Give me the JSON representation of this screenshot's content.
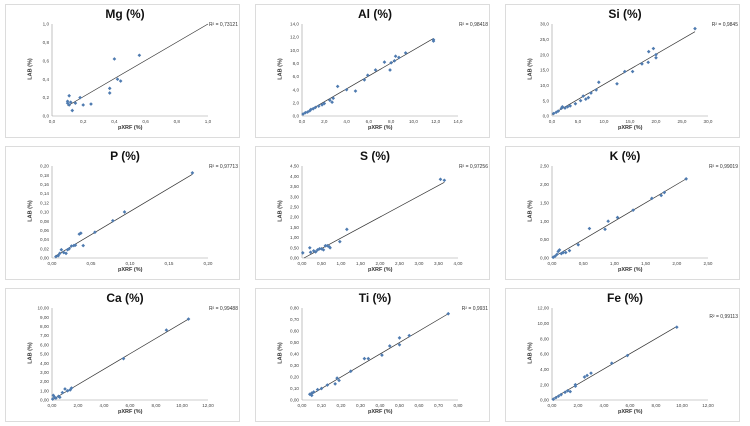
{
  "chart_data": [
    {
      "type": "scatter",
      "title": "Mg (%)",
      "r2_label": "R² = 0,73121",
      "xlabel": "pXRF (%)",
      "ylabel": "LAB (%)",
      "xlim": [
        0,
        1
      ],
      "ylim": [
        0,
        1
      ],
      "xticks": [
        "0,0",
        "0,2",
        "0,4",
        "0,6",
        "0,8",
        "1,0"
      ],
      "yticks": [
        "0,0",
        "0,2",
        "0,4",
        "0,6",
        "0,8",
        "1,0"
      ],
      "points": [
        [
          0.1,
          0.14
        ],
        [
          0.1,
          0.16
        ],
        [
          0.11,
          0.12
        ],
        [
          0.11,
          0.22
        ],
        [
          0.12,
          0.15
        ],
        [
          0.13,
          0.06
        ],
        [
          0.15,
          0.14
        ],
        [
          0.18,
          0.2
        ],
        [
          0.2,
          0.12
        ],
        [
          0.25,
          0.13
        ],
        [
          0.37,
          0.25
        ],
        [
          0.37,
          0.3
        ],
        [
          0.4,
          0.62
        ],
        [
          0.42,
          0.4
        ],
        [
          0.44,
          0.38
        ],
        [
          0.56,
          0.66
        ]
      ],
      "trendline": [
        [
          0.1,
          0.11
        ],
        [
          1.0,
          1.0
        ]
      ],
      "marker_color": "#4f7bb0",
      "line_color": "#333333"
    },
    {
      "type": "scatter",
      "title": "Al (%)",
      "r2_label": "R² = 0,98418",
      "xlabel": "pXRF (%)",
      "ylabel": "LAB (%)",
      "xlim": [
        0,
        14
      ],
      "ylim": [
        0,
        14
      ],
      "xticks": [
        "0,0",
        "2,0",
        "4,0",
        "6,0",
        "8,0",
        "10,0",
        "12,0",
        "14,0"
      ],
      "yticks": [
        "0,0",
        "2,0",
        "4,0",
        "6,0",
        "8,0",
        "10,0",
        "12,0",
        "14,0"
      ],
      "points": [
        [
          0.1,
          0.3
        ],
        [
          0.3,
          0.5
        ],
        [
          0.5,
          0.6
        ],
        [
          0.7,
          0.8
        ],
        [
          0.8,
          1.0
        ],
        [
          1.0,
          1.1
        ],
        [
          1.2,
          1.3
        ],
        [
          1.5,
          1.5
        ],
        [
          1.8,
          1.7
        ],
        [
          2.0,
          1.9
        ],
        [
          2.5,
          2.4
        ],
        [
          2.7,
          2.1
        ],
        [
          2.8,
          2.7
        ],
        [
          3.2,
          4.5
        ],
        [
          4.0,
          4.0
        ],
        [
          4.8,
          3.8
        ],
        [
          5.6,
          5.5
        ],
        [
          5.9,
          6.2
        ],
        [
          6.6,
          7.0
        ],
        [
          7.4,
          8.2
        ],
        [
          7.9,
          7.0
        ],
        [
          8.0,
          8.1
        ],
        [
          8.3,
          8.4
        ],
        [
          8.4,
          9.1
        ],
        [
          8.7,
          8.9
        ],
        [
          9.3,
          9.6
        ],
        [
          11.8,
          11.6
        ],
        [
          11.8,
          11.4
        ]
      ],
      "trendline": [
        [
          0,
          0.2
        ],
        [
          11.8,
          11.8
        ]
      ],
      "marker_color": "#4f7bb0",
      "line_color": "#333333"
    },
    {
      "type": "scatter",
      "title": "Si (%)",
      "r2_label": "R² = 0,9845",
      "xlabel": "pXRF (%)",
      "ylabel": "LAB (%)",
      "xlim": [
        0,
        30
      ],
      "ylim": [
        0,
        30
      ],
      "xticks": [
        "0,0",
        "5,0",
        "10,0",
        "15,0",
        "20,0",
        "25,0",
        "30,0"
      ],
      "yticks": [
        "0,0",
        "5,0",
        "10,0",
        "15,0",
        "20,0",
        "25,0",
        "30,0"
      ],
      "points": [
        [
          0.3,
          0.8
        ],
        [
          0.8,
          1.2
        ],
        [
          1.2,
          1.6
        ],
        [
          1.8,
          2.5
        ],
        [
          2,
          3
        ],
        [
          2.5,
          2.6
        ],
        [
          3,
          3
        ],
        [
          3.5,
          3.3
        ],
        [
          4.5,
          4
        ],
        [
          5.5,
          5
        ],
        [
          6,
          6.5
        ],
        [
          6.5,
          5.5
        ],
        [
          7,
          6
        ],
        [
          7.5,
          7.5
        ],
        [
          8.5,
          8.5
        ],
        [
          9,
          11
        ],
        [
          12.5,
          10.5
        ],
        [
          14,
          14.5
        ],
        [
          15.5,
          14.5
        ],
        [
          17.3,
          17
        ],
        [
          18.5,
          17.5
        ],
        [
          18.6,
          21
        ],
        [
          19.5,
          22
        ],
        [
          20,
          19
        ],
        [
          20,
          20
        ],
        [
          27.5,
          28.5
        ]
      ],
      "trendline": [
        [
          0,
          0.5
        ],
        [
          27.5,
          27.5
        ]
      ],
      "marker_color": "#4f7bb0",
      "line_color": "#333333"
    },
    {
      "type": "scatter",
      "title": "P (%)",
      "r2_label": "R² = 0,97713",
      "xlabel": "pXRF (%)",
      "ylabel": "LAB (%)",
      "xlim": [
        0,
        0.2
      ],
      "ylim": [
        0,
        0.2
      ],
      "xticks": [
        "0,00",
        "0,05",
        "0,10",
        "0,15",
        "0,20"
      ],
      "yticks": [
        "0,00",
        "0,02",
        "0,04",
        "0,06",
        "0,08",
        "0,10",
        "0,12",
        "0,14",
        "0,16",
        "0,18",
        "0,20"
      ],
      "points": [
        [
          0.005,
          0.003
        ],
        [
          0.008,
          0.005
        ],
        [
          0.01,
          0.01
        ],
        [
          0.012,
          0.018
        ],
        [
          0.015,
          0.012
        ],
        [
          0.018,
          0.01
        ],
        [
          0.02,
          0.018
        ],
        [
          0.022,
          0.02
        ],
        [
          0.025,
          0.026
        ],
        [
          0.028,
          0.027
        ],
        [
          0.03,
          0.028
        ],
        [
          0.035,
          0.052
        ],
        [
          0.037,
          0.054
        ],
        [
          0.04,
          0.027
        ],
        [
          0.055,
          0.056
        ],
        [
          0.078,
          0.081
        ],
        [
          0.093,
          0.1
        ],
        [
          0.18,
          0.185
        ]
      ],
      "trendline": [
        [
          0.005,
          0.005
        ],
        [
          0.18,
          0.182
        ]
      ],
      "marker_color": "#4f7bb0",
      "line_color": "#333333"
    },
    {
      "type": "scatter",
      "title": "S (%)",
      "r2_label": "R² = 0,97256",
      "xlabel": "pXRF (%)",
      "ylabel": "LAB (%)",
      "xlim": [
        0,
        4
      ],
      "ylim": [
        0,
        4.5
      ],
      "xticks": [
        "0,00",
        "0,50",
        "1,00",
        "1,50",
        "2,00",
        "2,50",
        "3,00",
        "3,50",
        "4,00"
      ],
      "yticks": [
        "0,00",
        "0,50",
        "1,00",
        "1,50",
        "2,00",
        "2,50",
        "3,00",
        "3,50",
        "4,00",
        "4,50"
      ],
      "points": [
        [
          0.02,
          0.25
        ],
        [
          0.2,
          0.5
        ],
        [
          0.22,
          0.28
        ],
        [
          0.3,
          0.35
        ],
        [
          0.35,
          0.3
        ],
        [
          0.4,
          0.4
        ],
        [
          0.45,
          0.45
        ],
        [
          0.5,
          0.45
        ],
        [
          0.55,
          0.4
        ],
        [
          0.6,
          0.6
        ],
        [
          0.65,
          0.6
        ],
        [
          0.7,
          0.55
        ],
        [
          0.72,
          0.5
        ],
        [
          0.97,
          0.8
        ],
        [
          1.15,
          1.4
        ],
        [
          3.55,
          3.85
        ],
        [
          3.65,
          3.8
        ]
      ],
      "trendline": [
        [
          0.05,
          0
        ],
        [
          3.65,
          3.7
        ]
      ],
      "marker_color": "#4f7bb0",
      "line_color": "#333333"
    },
    {
      "type": "scatter",
      "title": "K (%)",
      "r2_label": "R² = 0,99019",
      "xlabel": "pXRF (%)",
      "ylabel": "LAB (%)",
      "xlim": [
        0,
        2.5
      ],
      "ylim": [
        0,
        2.5
      ],
      "xticks": [
        "0,00",
        "0,50",
        "1,00",
        "1,50",
        "2,00",
        "2,50"
      ],
      "yticks": [
        "0,00",
        "0,50",
        "1,00",
        "1,50",
        "2,00",
        "2,50"
      ],
      "points": [
        [
          0.02,
          0.02
        ],
        [
          0.05,
          0.05
        ],
        [
          0.08,
          0.1
        ],
        [
          0.1,
          0.18
        ],
        [
          0.12,
          0.22
        ],
        [
          0.15,
          0.12
        ],
        [
          0.18,
          0.15
        ],
        [
          0.22,
          0.15
        ],
        [
          0.28,
          0.2
        ],
        [
          0.42,
          0.36
        ],
        [
          0.6,
          0.8
        ],
        [
          0.85,
          0.78
        ],
        [
          0.9,
          1.0
        ],
        [
          1.05,
          1.1
        ],
        [
          1.3,
          1.3
        ],
        [
          1.6,
          1.62
        ],
        [
          1.75,
          1.7
        ],
        [
          1.8,
          1.78
        ],
        [
          2.15,
          2.15
        ]
      ],
      "trendline": [
        [
          0,
          0
        ],
        [
          2.15,
          2.15
        ]
      ],
      "marker_color": "#4f7bb0",
      "line_color": "#333333"
    },
    {
      "type": "scatter",
      "title": "Ca (%)",
      "r2_label": "R² = 0,99488",
      "xlabel": "pXRF (%)",
      "ylabel": "LAB (%)",
      "xlim": [
        0,
        12
      ],
      "ylim": [
        0,
        10
      ],
      "xticks": [
        "0,00",
        "2,00",
        "4,00",
        "6,00",
        "8,00",
        "10,00",
        "12,00"
      ],
      "yticks": [
        "0,00",
        "1,00",
        "2,00",
        "3,00",
        "4,00",
        "5,00",
        "6,00",
        "7,00",
        "8,00",
        "9,00",
        "10,00"
      ],
      "points": [
        [
          0.05,
          0.1
        ],
        [
          0.1,
          0.5
        ],
        [
          0.2,
          0.3
        ],
        [
          0.3,
          0.2
        ],
        [
          0.5,
          0.4
        ],
        [
          0.6,
          0.3
        ],
        [
          0.8,
          0.8
        ],
        [
          1.0,
          1.2
        ],
        [
          1.2,
          1.0
        ],
        [
          1.4,
          1.1
        ],
        [
          1.5,
          1.3
        ],
        [
          5.5,
          4.5
        ],
        [
          8.8,
          7.6
        ],
        [
          10.5,
          8.8
        ]
      ],
      "trendline": [
        [
          0,
          0
        ],
        [
          10.5,
          8.8
        ]
      ],
      "marker_color": "#4f7bb0",
      "line_color": "#333333"
    },
    {
      "type": "scatter",
      "title": "Ti (%)",
      "r2_label": "R² = 0,9931",
      "xlabel": "pXRF (%)",
      "ylabel": "LAB (%)",
      "xlim": [
        0,
        0.8
      ],
      "ylim": [
        0,
        0.8
      ],
      "xticks": [
        "0,00",
        "0,10",
        "0,20",
        "0,30",
        "0,40",
        "0,50",
        "0,60",
        "0,70",
        "0,80"
      ],
      "yticks": [
        "0,00",
        "0,10",
        "0,20",
        "0,30",
        "0,40",
        "0,50",
        "0,60",
        "0,70",
        "0,80"
      ],
      "points": [
        [
          0.04,
          0.05
        ],
        [
          0.05,
          0.04
        ],
        [
          0.05,
          0.06
        ],
        [
          0.06,
          0.07
        ],
        [
          0.08,
          0.09
        ],
        [
          0.1,
          0.1
        ],
        [
          0.13,
          0.13
        ],
        [
          0.17,
          0.14
        ],
        [
          0.18,
          0.19
        ],
        [
          0.19,
          0.17
        ],
        [
          0.25,
          0.25
        ],
        [
          0.32,
          0.36
        ],
        [
          0.34,
          0.36
        ],
        [
          0.41,
          0.39
        ],
        [
          0.45,
          0.47
        ],
        [
          0.5,
          0.48
        ],
        [
          0.5,
          0.54
        ],
        [
          0.55,
          0.56
        ],
        [
          0.75,
          0.75
        ]
      ],
      "trendline": [
        [
          0.04,
          0.04
        ],
        [
          0.75,
          0.75
        ]
      ],
      "marker_color": "#4f7bb0",
      "line_color": "#333333"
    },
    {
      "type": "scatter",
      "title": "Fe (%)",
      "r2_label": "R² = 0,99113",
      "xlabel": "pXRF (%)",
      "ylabel": "LAB (%)",
      "xlim": [
        0,
        12
      ],
      "ylim": [
        0,
        12
      ],
      "xticks": [
        "0,00",
        "2,00",
        "4,00",
        "6,00",
        "8,00",
        "10,00",
        "12,00"
      ],
      "yticks": [
        "0,00",
        "2,00",
        "4,00",
        "6,00",
        "8,00",
        "10,00",
        "12,00"
      ],
      "points": [
        [
          0.1,
          0.1
        ],
        [
          0.3,
          0.3
        ],
        [
          0.5,
          0.5
        ],
        [
          0.7,
          0.7
        ],
        [
          1.0,
          1.0
        ],
        [
          1.2,
          1.2
        ],
        [
          1.4,
          1.1
        ],
        [
          1.8,
          1.8
        ],
        [
          1.8,
          2.0
        ],
        [
          2.5,
          3.0
        ],
        [
          2.7,
          3.2
        ],
        [
          3.0,
          3.5
        ],
        [
          4.6,
          4.8
        ],
        [
          5.8,
          5.8
        ],
        [
          9.6,
          9.5
        ]
      ],
      "trendline": [
        [
          0,
          0.1
        ],
        [
          9.6,
          9.6
        ]
      ],
      "marker_color": "#4f7bb0",
      "line_color": "#333333"
    }
  ]
}
